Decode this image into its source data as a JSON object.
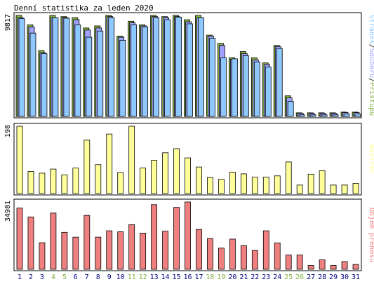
{
  "title": "Denní statistika za leden 2020",
  "colors": {
    "pages": "#8fc8ff",
    "files": "#a0a0ff",
    "hits": "#80b040",
    "visits": "#ffff99",
    "volume": "#f08080",
    "weekend": "#80b040",
    "weekday": "#000080"
  },
  "chart_data": {
    "type": "bar",
    "categories": [
      "1",
      "2",
      "3",
      "4",
      "5",
      "6",
      "7",
      "8",
      "9",
      "10",
      "11",
      "12",
      "13",
      "14",
      "15",
      "16",
      "17",
      "18",
      "19",
      "20",
      "21",
      "22",
      "23",
      "24",
      "25",
      "26",
      "27",
      "28",
      "29",
      "30",
      "31"
    ],
    "weekend_days": [
      "4",
      "5",
      "11",
      "12",
      "18",
      "19",
      "25",
      "26"
    ],
    "panels": [
      {
        "ylabel": "Stránek / Souborů / Přístupů",
        "max_label": "9817",
        "ymax": 9817,
        "series": [
          {
            "name": "Přístupů",
            "values": [
              9817,
              8900,
              6400,
              9817,
              9700,
              9600,
              8600,
              8800,
              9817,
              7800,
              9250,
              8900,
              9817,
              9700,
              9817,
              9400,
              9817,
              7900,
              7100,
              5700,
              6300,
              5700,
              5200,
              6900,
              2000,
              350,
              350,
              350,
              350,
              420,
              420
            ]
          },
          {
            "name": "Souborů",
            "values": [
              9600,
              8700,
              6200,
              9600,
              9600,
              9400,
              8400,
              8600,
              9700,
              7700,
              9100,
              8800,
              9700,
              9600,
              9700,
              9200,
              9600,
              7800,
              6900,
              5550,
              6100,
              5500,
              5050,
              6800,
              1800,
              300,
              300,
              300,
              300,
              370,
              370
            ]
          },
          {
            "name": "Stránek",
            "values": [
              9500,
              8100,
              6100,
              9600,
              9550,
              8900,
              7700,
              8300,
              9600,
              7400,
              8900,
              8700,
              9600,
              9400,
              9650,
              9000,
              9600,
              7600,
              5700,
              5600,
              5900,
              5300,
              4800,
              6600,
              1450,
              150,
              150,
              150,
              150,
              230,
              230
            ]
          }
        ]
      },
      {
        "ylabel": "Návštěv",
        "max_label": "198",
        "ymax": 198,
        "series": [
          {
            "name": "Návštěv",
            "values": [
              198,
              65,
              60,
              72,
              55,
              75,
              157,
              85,
              175,
              62,
              198,
              75,
              98,
              120,
              132,
              105,
              78,
              47,
              42,
              63,
              58,
              48,
              48,
              52,
              93,
              25,
              57,
              67,
              25,
              25,
              30
            ]
          }
        ]
      },
      {
        "ylabel": "Objem přenosu",
        "max_label": "34981",
        "ymax": 34981,
        "series": [
          {
            "name": "Objem přenosu",
            "values": [
              31800,
              27200,
              13800,
              29200,
              19200,
              16700,
              28000,
              16700,
              20000,
              19500,
              23200,
              18800,
              33600,
              19800,
              32200,
              34981,
              20700,
              16000,
              11000,
              15700,
              12300,
              9800,
              20000,
              13700,
              7400,
              7400,
              2000,
              4900,
              2000,
              4000,
              2500
            ]
          }
        ]
      }
    ]
  }
}
